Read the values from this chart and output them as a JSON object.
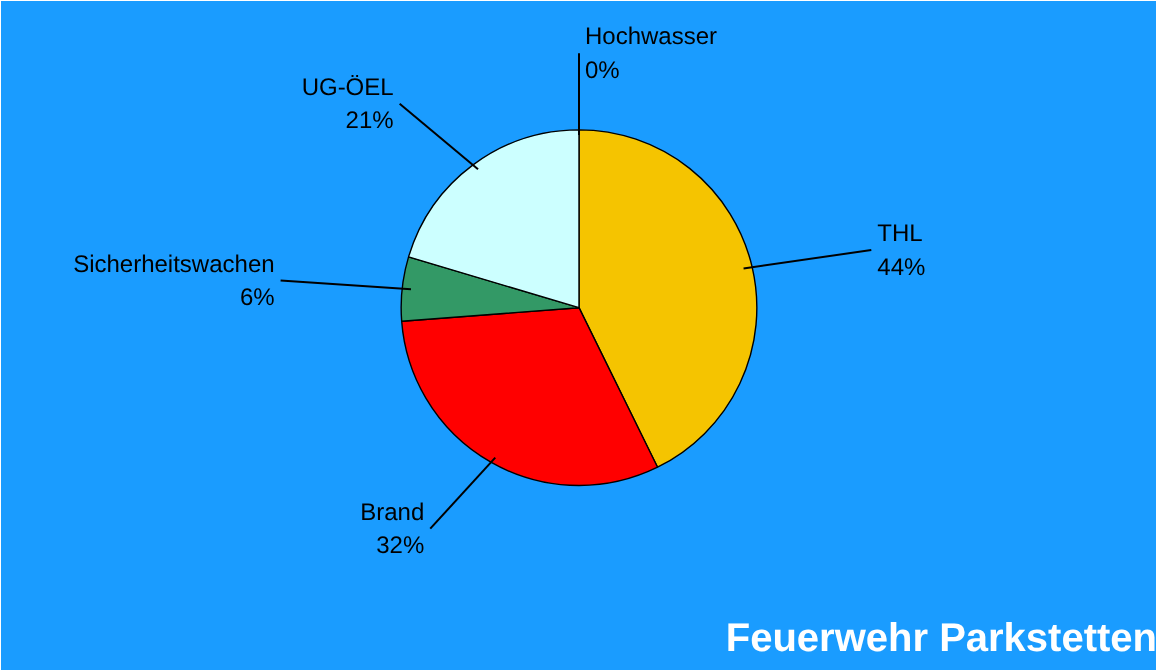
{
  "chart_data": {
    "type": "pie",
    "title": "Feuerwehr Parkstetten",
    "categories": [
      "THL",
      "Brand",
      "Sicherheitswachen",
      "UG-ÖEL",
      "Hochwasser"
    ],
    "values": [
      44,
      32,
      6,
      21,
      0
    ],
    "value_labels": [
      "44%",
      "32%",
      "6%",
      "21%",
      "0%"
    ],
    "colors": [
      "#f5c400",
      "#ff0000",
      "#339966",
      "#ccffff",
      "#9999ff"
    ]
  }
}
